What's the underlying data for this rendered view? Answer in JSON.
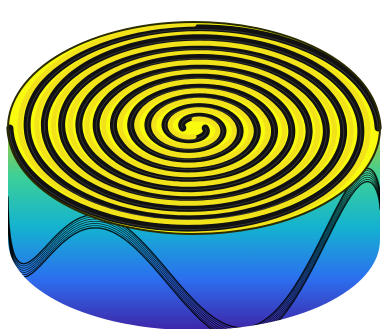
{
  "chart_data": {
    "type": "surface-3d",
    "title": "",
    "xlabel": "",
    "ylabel": "",
    "zlabel": "",
    "axes_visible": false,
    "grid": false,
    "legend": "none",
    "colormap": "parula",
    "colormap_stops": [
      "#3E26A8",
      "#2C6FEF",
      "#14B2D0",
      "#3DD097",
      "#B3C72E",
      "#F5D72A",
      "#F9FB0E"
    ],
    "edge_color": "#000000",
    "surface": {
      "spiral_arms": 2,
      "spiral_turns": 5,
      "rim_oscillations": 4,
      "z_range": [
        -1,
        1
      ]
    }
  }
}
